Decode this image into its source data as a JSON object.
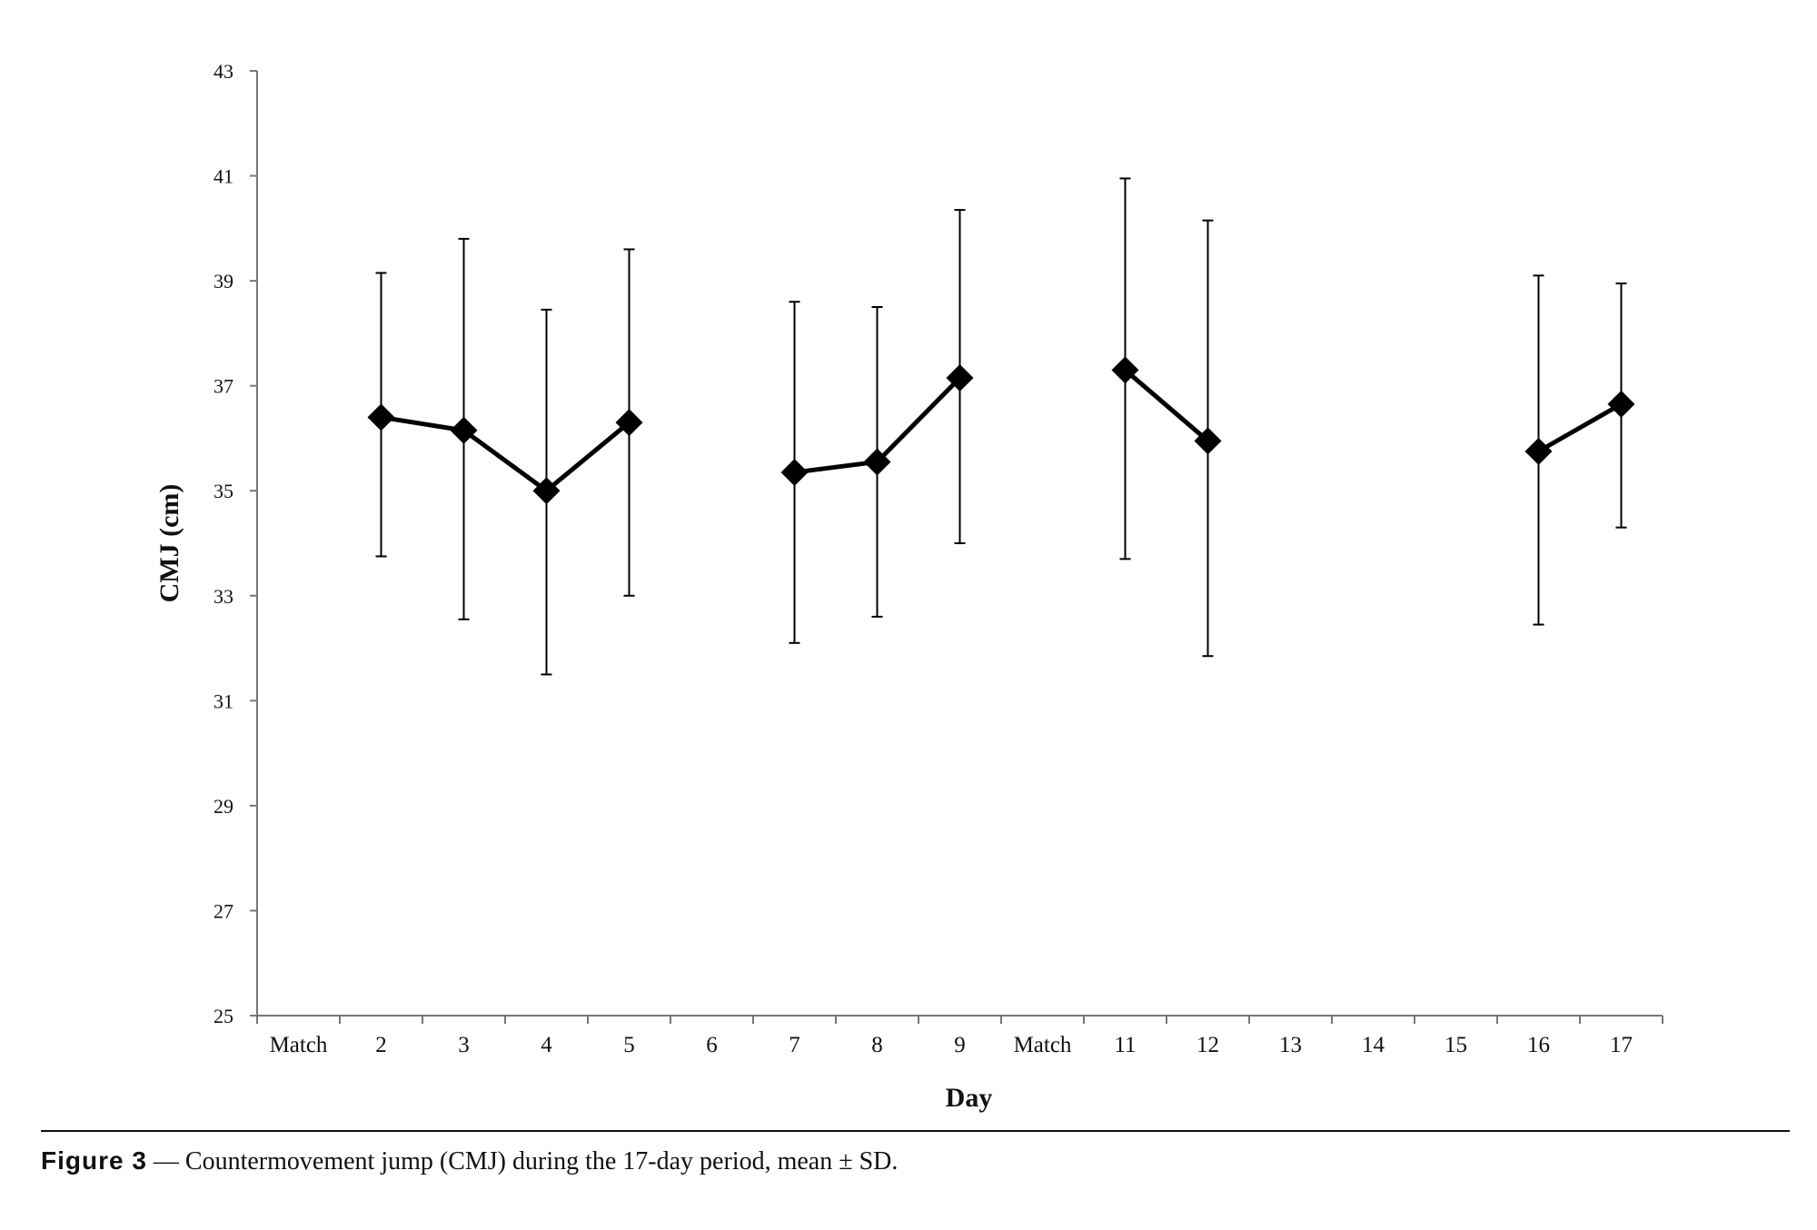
{
  "chart_data": {
    "type": "line",
    "title": "",
    "xlabel": "Day",
    "ylabel": "CMJ (cm)",
    "ylim": [
      25,
      43
    ],
    "yticks": [
      "25",
      "27",
      "29",
      "31",
      "33",
      "35",
      "37",
      "39",
      "41",
      "43"
    ],
    "categories": [
      "Match",
      "2",
      "3",
      "4",
      "5",
      "6",
      "7",
      "8",
      "9",
      "Match",
      "11",
      "12",
      "13",
      "14",
      "15",
      "16",
      "17"
    ],
    "values": [
      null,
      36.4,
      36.15,
      35.0,
      36.3,
      null,
      35.35,
      35.55,
      37.15,
      null,
      37.3,
      35.95,
      null,
      null,
      null,
      35.75,
      36.65
    ],
    "sd_upper": [
      null,
      39.15,
      39.8,
      38.45,
      39.6,
      null,
      38.6,
      38.5,
      40.35,
      null,
      40.95,
      40.15,
      null,
      null,
      null,
      39.1,
      38.95
    ],
    "sd_lower": [
      null,
      33.75,
      32.55,
      31.5,
      33.0,
      null,
      32.1,
      32.6,
      34.0,
      null,
      33.7,
      31.85,
      null,
      null,
      null,
      32.45,
      34.3
    ],
    "grid": false,
    "legend": "none",
    "color": "#000000",
    "marker": "diamond"
  },
  "caption": {
    "label": "Figure 3",
    "text": " — Countermovement jump (CMJ) during the 17-day period, mean ± SD."
  }
}
